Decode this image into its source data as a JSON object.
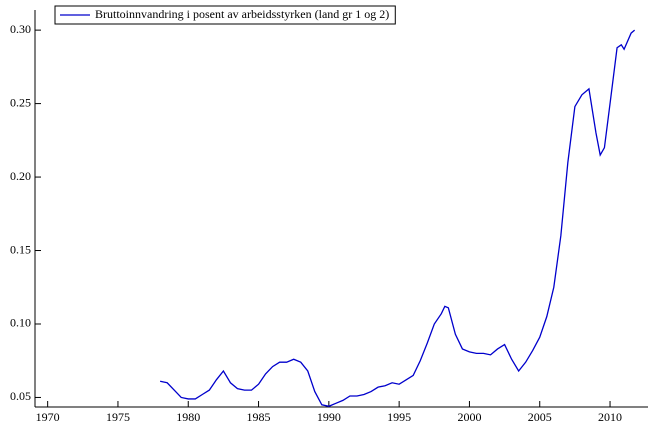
{
  "chart_data": {
    "type": "line",
    "series": [
      {
        "name": "Bruttoinnvandring i posent av arbeidsstyrken (land gr 1 og 2)",
        "color": "#0000cc",
        "x": [
          1978.0,
          1978.5,
          1979.0,
          1979.5,
          1980.0,
          1980.5,
          1981.0,
          1981.5,
          1982.0,
          1982.5,
          1983.0,
          1983.5,
          1984.0,
          1984.5,
          1985.0,
          1985.5,
          1986.0,
          1986.5,
          1987.0,
          1987.5,
          1988.0,
          1988.5,
          1989.0,
          1989.5,
          1990.0,
          1990.5,
          1991.0,
          1991.5,
          1992.0,
          1992.5,
          1993.0,
          1993.5,
          1994.0,
          1994.5,
          1995.0,
          1995.5,
          1996.0,
          1996.5,
          1997.0,
          1997.5,
          1998.0,
          1998.25,
          1998.5,
          1999.0,
          1999.5,
          2000.0,
          2000.5,
          2001.0,
          2001.5,
          2002.0,
          2002.5,
          2003.0,
          2003.5,
          2004.0,
          2004.5,
          2005.0,
          2005.5,
          2006.0,
          2006.5,
          2007.0,
          2007.5,
          2008.0,
          2008.5,
          2009.0,
          2009.3,
          2009.6,
          2010.0,
          2010.5,
          2010.8,
          2011.0,
          2011.5,
          2011.75
        ],
        "values": [
          0.061,
          0.06,
          0.055,
          0.05,
          0.049,
          0.049,
          0.052,
          0.055,
          0.062,
          0.068,
          0.06,
          0.056,
          0.055,
          0.055,
          0.059,
          0.066,
          0.071,
          0.074,
          0.074,
          0.076,
          0.074,
          0.068,
          0.054,
          0.045,
          0.044,
          0.046,
          0.048,
          0.051,
          0.051,
          0.052,
          0.054,
          0.057,
          0.058,
          0.06,
          0.059,
          0.062,
          0.065,
          0.075,
          0.087,
          0.1,
          0.107,
          0.112,
          0.111,
          0.093,
          0.083,
          0.081,
          0.08,
          0.08,
          0.079,
          0.083,
          0.086,
          0.076,
          0.068,
          0.074,
          0.082,
          0.091,
          0.105,
          0.125,
          0.16,
          0.21,
          0.248,
          0.256,
          0.26,
          0.23,
          0.215,
          0.22,
          0.25,
          0.288,
          0.29,
          0.287,
          0.298,
          0.3
        ]
      }
    ],
    "xlim": [
      1969.1,
      2012.7
    ],
    "xticks": [
      1970,
      1975,
      1980,
      1985,
      1990,
      1995,
      2000,
      2005,
      2010
    ],
    "ylim": [
      0.0435,
      0.3137
    ],
    "yticks": [
      {
        "value": 0.05,
        "label": "0.05"
      },
      {
        "value": 0.1,
        "label": "0.10"
      },
      {
        "value": 0.15,
        "label": "0.15"
      },
      {
        "value": 0.2,
        "label": "0.20"
      },
      {
        "value": 0.25,
        "label": "0.25"
      },
      {
        "value": 0.3,
        "label": "0.30"
      }
    ],
    "legend": "upper left"
  }
}
